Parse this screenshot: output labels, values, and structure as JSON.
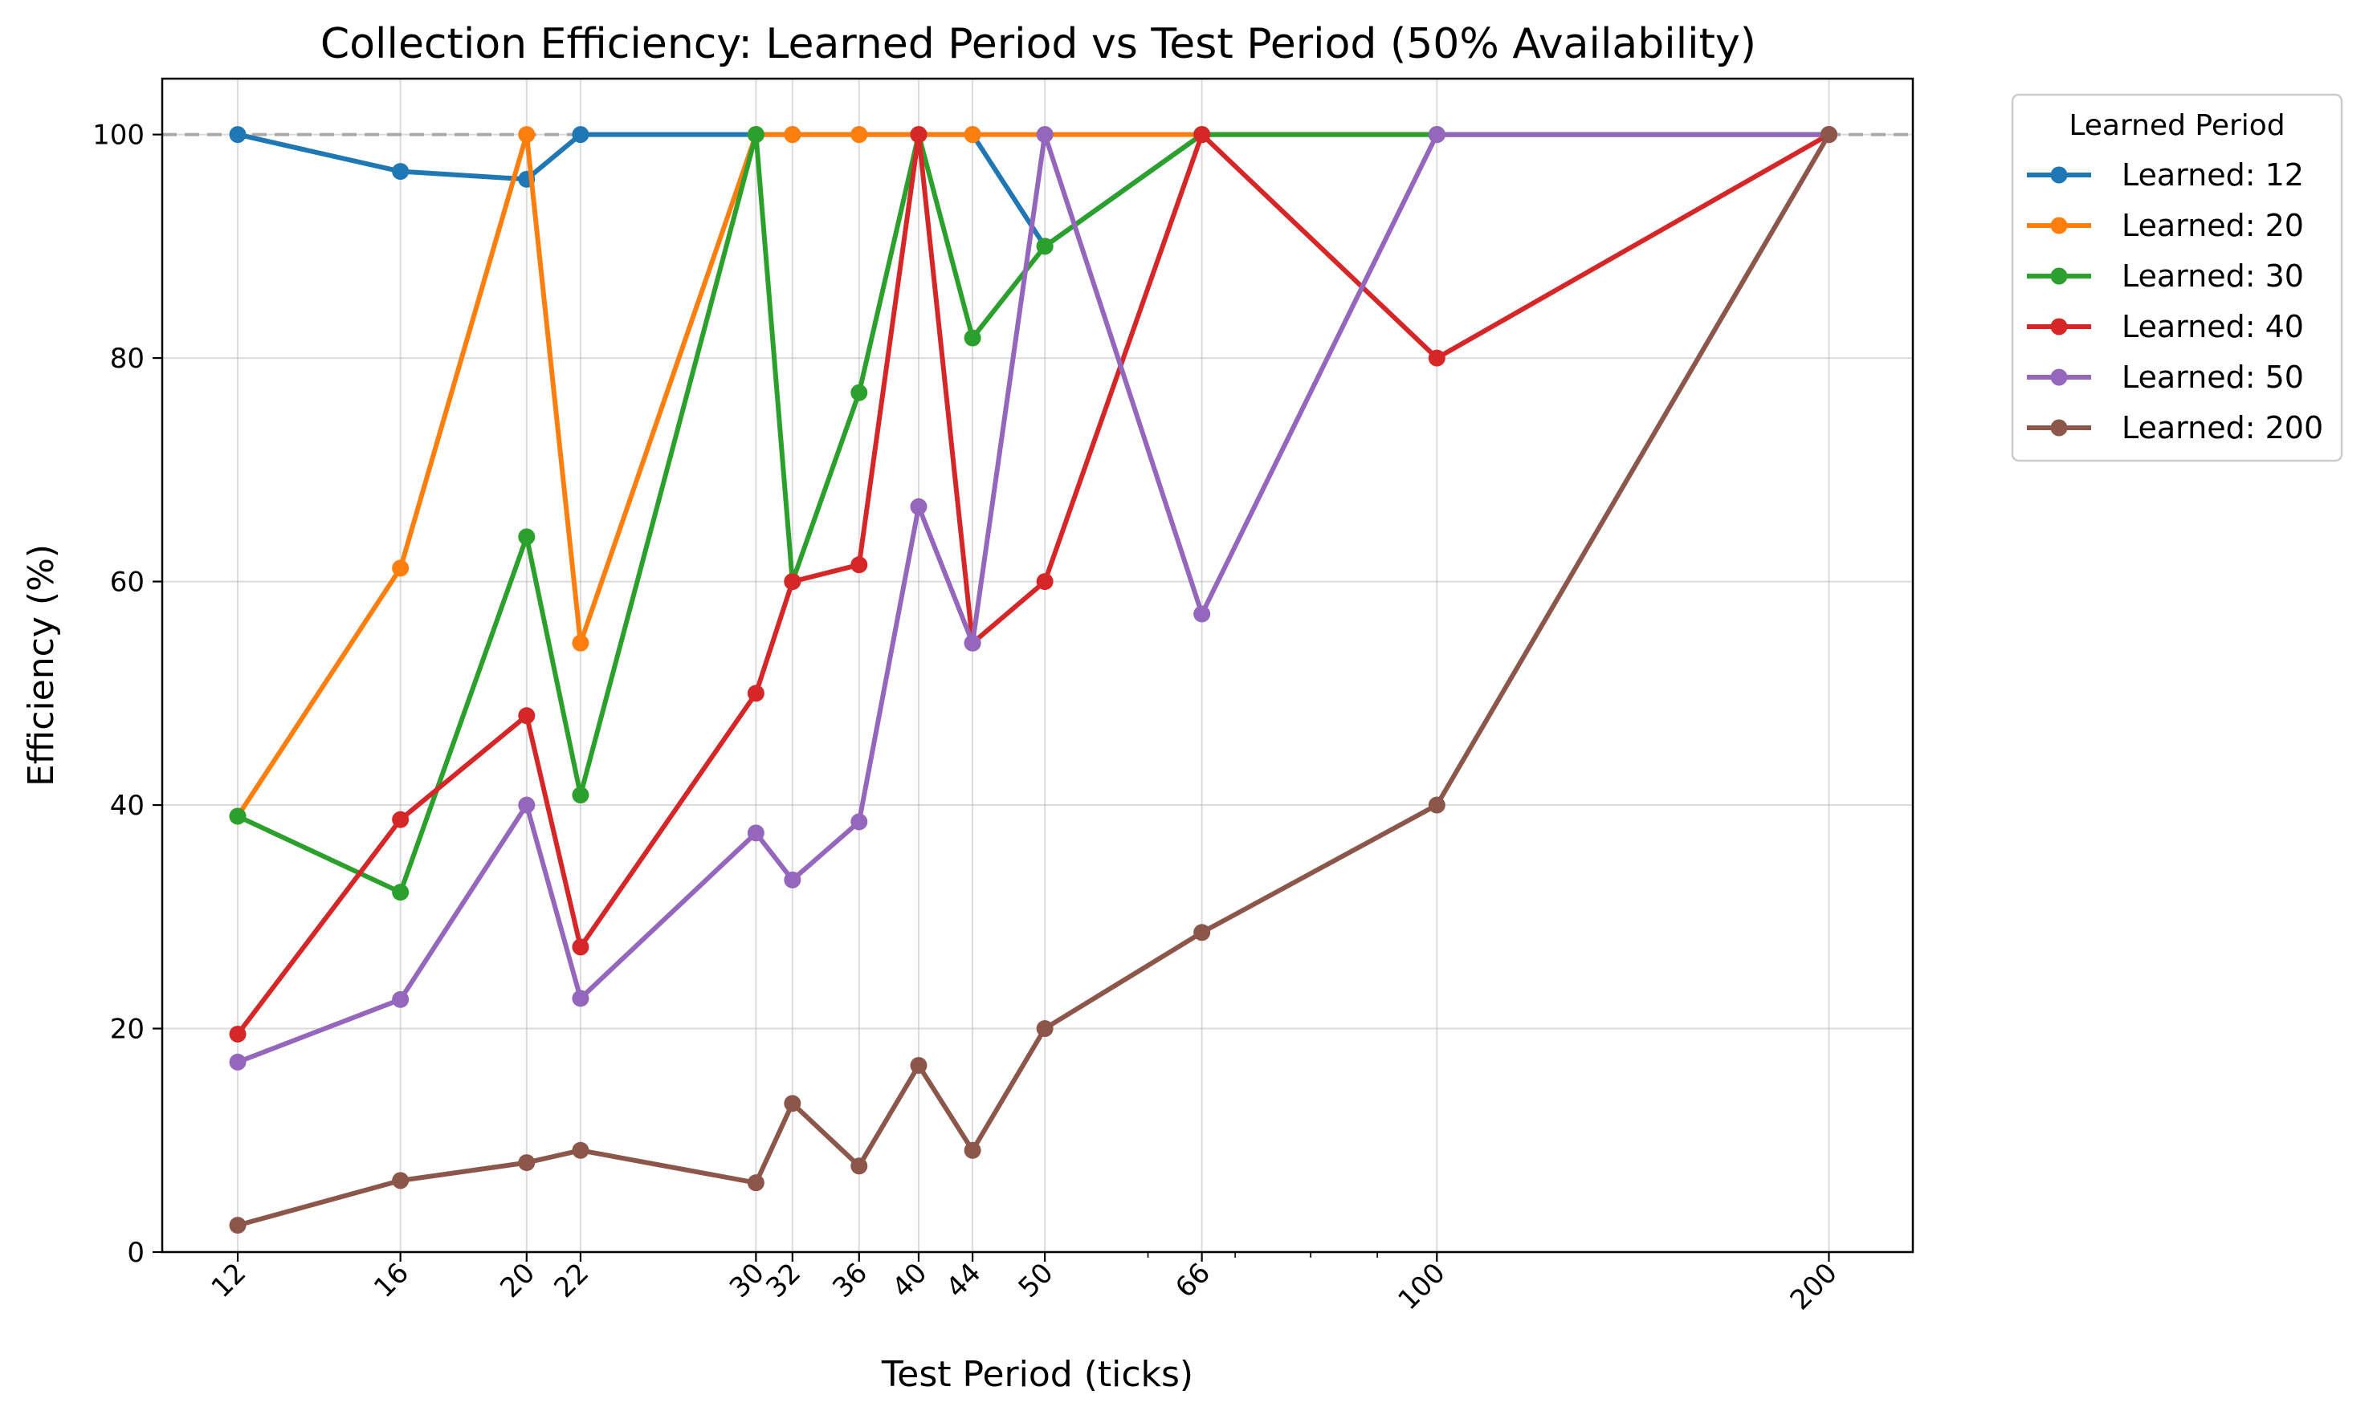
{
  "chart_data": {
    "type": "line",
    "title": "Collection Efficiency: Learned Period vs Test Period (50% Availability)",
    "xlabel": "Test Period (ticks)",
    "ylabel": "Efficiency (%)",
    "x_scale": "log",
    "xlim": [
      10.5,
      232
    ],
    "ylim": [
      0,
      105
    ],
    "x_ticks": [
      12,
      16,
      20,
      22,
      30,
      32,
      36,
      40,
      44,
      50,
      66,
      100,
      200
    ],
    "x_tick_labels": [
      "12",
      "16",
      "20",
      "22",
      "30",
      "32",
      "36",
      "40",
      "44",
      "50",
      "66",
      "100",
      "200"
    ],
    "x_tick_rotation": 45,
    "y_ticks": [
      0,
      20,
      40,
      60,
      80,
      100
    ],
    "y_tick_labels": [
      "0",
      "20",
      "40",
      "60",
      "80",
      "100"
    ],
    "grid": true,
    "reference_line": {
      "y": 100,
      "style": "dashed",
      "color": "#aaaaaa"
    },
    "legend": {
      "title": "Learned Period",
      "placement": "outside-top-right"
    },
    "x": [
      12,
      16,
      20,
      22,
      30,
      32,
      36,
      40,
      44,
      50,
      66,
      100,
      200
    ],
    "series": [
      {
        "name": "Learned: 12",
        "color": "#1f77b4",
        "values": [
          100,
          96.7,
          96,
          100,
          100,
          100,
          100,
          100,
          100,
          90,
          100,
          100,
          100
        ]
      },
      {
        "name": "Learned: 20",
        "color": "#ff7f0e",
        "values": [
          39,
          61.2,
          100,
          54.5,
          100,
          100,
          100,
          100,
          100,
          100,
          100,
          100,
          100
        ]
      },
      {
        "name": "Learned: 30",
        "color": "#2ca02c",
        "values": [
          39,
          32.2,
          64,
          40.9,
          100,
          60,
          76.9,
          100,
          81.8,
          90,
          100,
          100,
          100
        ]
      },
      {
        "name": "Learned: 40",
        "color": "#d62728",
        "values": [
          19.5,
          38.7,
          48,
          27.3,
          50,
          60,
          61.5,
          100,
          54.5,
          60,
          100,
          80,
          100
        ]
      },
      {
        "name": "Learned: 50",
        "color": "#9467bd",
        "values": [
          17,
          22.6,
          40,
          22.7,
          37.5,
          33.3,
          38.5,
          66.7,
          54.5,
          100,
          57.1,
          100,
          100
        ]
      },
      {
        "name": "Learned: 200",
        "color": "#8c564b",
        "values": [
          2.4,
          6.4,
          8,
          9.1,
          6.2,
          13.3,
          7.7,
          16.7,
          9.1,
          20,
          28.6,
          40,
          100
        ]
      }
    ]
  }
}
